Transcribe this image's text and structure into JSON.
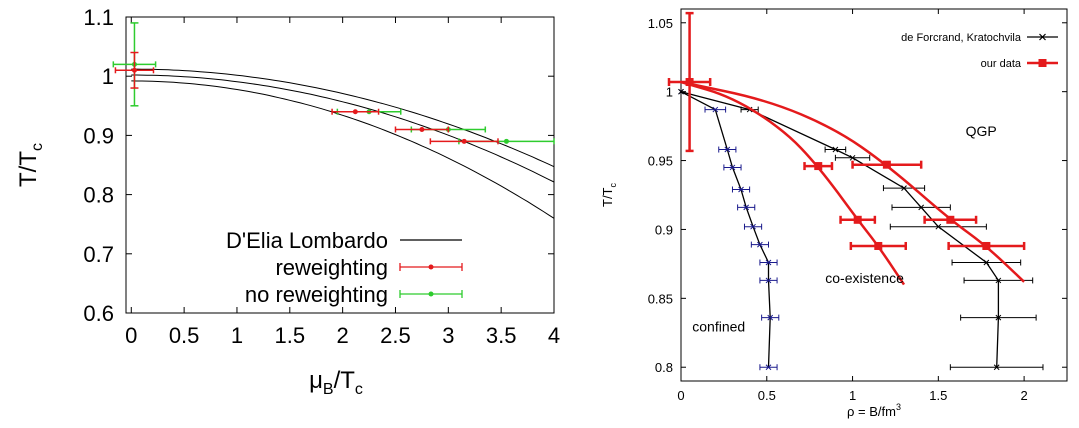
{
  "chart_data": [
    {
      "type": "line",
      "xlabel": "μ",
      "xlabel_sub": "B",
      "xlabel_tail": "/T",
      "xlabel_sub2": "c",
      "ylabel": "T/T",
      "ylabel_sub": "c",
      "xlim": [
        -0.05,
        4
      ],
      "ylim": [
        0.6,
        1.1
      ],
      "xticks": [
        "0",
        "0.5",
        "1",
        "1.5",
        "2",
        "2.5",
        "3",
        "3.5",
        "4"
      ],
      "yticks": [
        "0.6",
        "0.7",
        "0.8",
        "0.9",
        "1",
        "1.1"
      ],
      "legend_position": "bottom-left",
      "series": [
        {
          "name": "D'Elia Lombardo",
          "style": "line",
          "color": "#000000",
          "curves": [
            {
              "a": 1.012,
              "k": 0.0103
            },
            {
              "a": 1.002,
              "k": 0.0113
            },
            {
              "a": 0.992,
              "k": 0.0145
            }
          ]
        },
        {
          "name": "reweighting",
          "style": "points-xerr",
          "color": "#e41a1c",
          "points": [
            {
              "x": 0.03,
              "y": 1.01,
              "xerr": 0.18,
              "yerr": 0.03
            },
            {
              "x": 2.12,
              "y": 0.94,
              "xerr": 0.22,
              "yerr": 0.005
            },
            {
              "x": 2.75,
              "y": 0.91,
              "xerr": 0.25,
              "yerr": 0.005
            },
            {
              "x": 3.15,
              "y": 0.89,
              "xerr": 0.32,
              "yerr": 0.005
            }
          ]
        },
        {
          "name": "no reweighting",
          "style": "points-xerr",
          "color": "#2ecc2e",
          "points": [
            {
              "x": 0.03,
              "y": 1.02,
              "xerr": 0.2,
              "yerr": 0.07
            },
            {
              "x": 2.25,
              "y": 0.94,
              "xerr": 0.3,
              "yerr": 0.005
            },
            {
              "x": 3.0,
              "y": 0.91,
              "xerr": 0.35,
              "yerr": 0.005
            },
            {
              "x": 3.55,
              "y": 0.89,
              "xerr": 0.45,
              "yerr": 0.005
            }
          ]
        }
      ]
    },
    {
      "type": "line",
      "xlabel": "ρ = B/fm",
      "xlabel_sup": "3",
      "ylabel": "T/T",
      "ylabel_sub": "c",
      "xlim": [
        0,
        2.25
      ],
      "ylim": [
        0.79,
        1.06
      ],
      "xticks": [
        "0",
        "0.5",
        "1",
        "1.5",
        "2"
      ],
      "yticks": [
        "0.8",
        "0.85",
        "0.9",
        "0.95",
        "1",
        "1.05"
      ],
      "legend_position": "top-right",
      "region_labels": [
        {
          "text": "QGP",
          "x": 1.75,
          "y": 0.968
        },
        {
          "text": "co-existence",
          "x": 1.07,
          "y": 0.861
        },
        {
          "text": "confined",
          "x": 0.22,
          "y": 0.826
        }
      ],
      "series": [
        {
          "name": "de Forcrand, Kratochvila",
          "style": "line-xerr",
          "color": "#000000",
          "marker": "x",
          "points": [
            {
              "x": 0.0,
              "y": 1.0,
              "xerr": 0.0
            },
            {
              "x": 0.2,
              "y": 0.987,
              "xerr": 0.06
            },
            {
              "x": 0.27,
              "y": 0.958,
              "xerr": 0.05
            },
            {
              "x": 0.3,
              "y": 0.945,
              "xerr": 0.05
            },
            {
              "x": 0.35,
              "y": 0.929,
              "xerr": 0.05
            },
            {
              "x": 0.38,
              "y": 0.916,
              "xerr": 0.05
            },
            {
              "x": 0.42,
              "y": 0.902,
              "xerr": 0.05
            },
            {
              "x": 0.46,
              "y": 0.889,
              "xerr": 0.05
            },
            {
              "x": 0.51,
              "y": 0.876,
              "xerr": 0.05
            },
            {
              "x": 0.51,
              "y": 0.863,
              "xerr": 0.05
            },
            {
              "x": 0.52,
              "y": 0.836,
              "xerr": 0.05
            },
            {
              "x": 0.51,
              "y": 0.8,
              "xerr": 0.05
            }
          ],
          "points_right": [
            {
              "x": 0.0,
              "y": 1.0,
              "xerr": 0.0
            },
            {
              "x": 0.4,
              "y": 0.987,
              "xerr": 0.05
            },
            {
              "x": 0.9,
              "y": 0.958,
              "xerr": 0.06
            },
            {
              "x": 1.0,
              "y": 0.952,
              "xerr": 0.1
            },
            {
              "x": 1.3,
              "y": 0.93,
              "xerr": 0.12
            },
            {
              "x": 1.4,
              "y": 0.916,
              "xerr": 0.17
            },
            {
              "x": 1.5,
              "y": 0.902,
              "xerr": 0.28
            },
            {
              "x": 1.78,
              "y": 0.876,
              "xerr": 0.2
            },
            {
              "x": 1.85,
              "y": 0.863,
              "xerr": 0.2
            },
            {
              "x": 1.85,
              "y": 0.836,
              "xerr": 0.22
            },
            {
              "x": 1.84,
              "y": 0.8,
              "xerr": 0.27
            }
          ]
        },
        {
          "name": "our data",
          "style": "points-xerr",
          "color": "#e41a1c",
          "marker": "square",
          "points": [
            {
              "x": 0.05,
              "y": 1.007,
              "xerr": 0.12,
              "yerr": 0.05
            },
            {
              "x": 0.8,
              "y": 0.946,
              "xerr": 0.08,
              "yerr": 0.0
            },
            {
              "x": 1.2,
              "y": 0.947,
              "xerr": 0.2,
              "yerr": 0.0
            },
            {
              "x": 1.03,
              "y": 0.907,
              "xerr": 0.1,
              "yerr": 0.0
            },
            {
              "x": 1.57,
              "y": 0.907,
              "xerr": 0.15,
              "yerr": 0.0
            },
            {
              "x": 1.15,
              "y": 0.888,
              "xerr": 0.16,
              "yerr": 0.0
            },
            {
              "x": 1.78,
              "y": 0.888,
              "xerr": 0.22,
              "yerr": 0.0
            }
          ],
          "curves": [
            [
              [
                0.0,
                1.007
              ],
              [
                0.3,
                0.996
              ],
              [
                0.6,
                0.972
              ],
              [
                0.8,
                0.946
              ],
              [
                1.03,
                0.907
              ],
              [
                1.15,
                0.888
              ],
              [
                1.3,
                0.86
              ]
            ],
            [
              [
                0.0,
                1.007
              ],
              [
                0.5,
                0.994
              ],
              [
                0.9,
                0.973
              ],
              [
                1.2,
                0.947
              ],
              [
                1.57,
                0.907
              ],
              [
                1.78,
                0.888
              ],
              [
                2.0,
                0.862
              ]
            ]
          ]
        }
      ]
    }
  ]
}
